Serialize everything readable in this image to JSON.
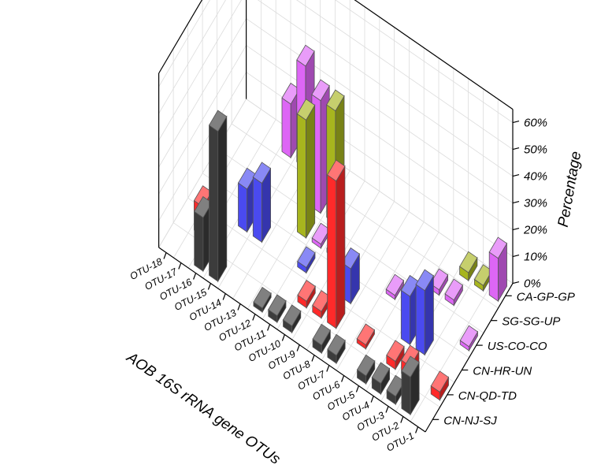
{
  "chart_data": {
    "type": "bar3d",
    "title": "",
    "xlabel": "AOB 16S rRNA gene OTUs",
    "ylabel": "",
    "zlabel": "Percentage",
    "zlim": [
      0,
      65
    ],
    "z_ticks": [
      "0%",
      "10%",
      "20%",
      "30%",
      "40%",
      "50%",
      "60%"
    ],
    "z_tick_values": [
      0,
      10,
      20,
      30,
      40,
      50,
      60
    ],
    "grid": true,
    "categories": [
      "OTU-1",
      "OTU-2",
      "OTU-3",
      "OTU-4",
      "OTU-5",
      "OTU-6",
      "OTU-7",
      "OTU-8",
      "OTU-9",
      "OTU-10",
      "OTU-11",
      "OTU-12",
      "OTU-13",
      "OTU-14",
      "OTU-15",
      "OTU-16",
      "OTU-17",
      "OTU-18"
    ],
    "series": [
      {
        "name": "CN-NJ-SJ",
        "color": "#3c3c3c",
        "values": [
          0,
          14,
          3,
          4,
          3,
          0,
          3,
          3,
          0,
          2.5,
          2.5,
          1.5,
          0,
          0,
          56,
          20,
          0,
          0
        ]
      },
      {
        "name": "CN-QD-TD",
        "color": "#ff2a2a",
        "values": [
          3,
          0,
          5,
          3,
          0,
          1.5,
          0,
          55,
          2.5,
          2.5,
          0,
          0,
          0,
          0,
          0,
          0,
          11,
          0
        ]
      },
      {
        "name": "CN-HR-UN",
        "color": "#4a4af0",
        "values": [
          0,
          0,
          24,
          18,
          0,
          0,
          0,
          13,
          0,
          0,
          2,
          0,
          0,
          0,
          0,
          0,
          0,
          0
        ]
      },
      {
        "name": "US-CO-CO",
        "color": "#dd66f5",
        "values": [
          1.5,
          0,
          0,
          0,
          0,
          1.5,
          0,
          0,
          0,
          1.5,
          1.5,
          0,
          0,
          0,
          0,
          0,
          0,
          0
        ]
      },
      {
        "name": "SG-SG-UP",
        "color": "#dd66f5",
        "values": [
          0,
          0,
          2,
          2,
          0,
          0,
          0,
          0,
          0,
          0,
          0,
          0,
          0,
          0,
          0,
          0,
          0,
          0
        ]
      },
      {
        "name": "CA-GP-GP",
        "color": "#a7b51e",
        "values": [
          0,
          2,
          3,
          0,
          0,
          0,
          0,
          0,
          0,
          0,
          0,
          0,
          0,
          0,
          0,
          0,
          0,
          0
        ]
      }
    ],
    "extra_bars": [
      {
        "category": "OTU-1",
        "series": "CA-GP-GP",
        "value": 16,
        "color": "#dd66f5"
      },
      {
        "category": "OTU-14",
        "series": "CA-GP-GP",
        "value": 38,
        "color": "#dd66f5"
      },
      {
        "category": "OTU-15",
        "series": "CA-GP-GP",
        "value": 20,
        "color": "#dd66f5"
      },
      {
        "category": "OTU-14",
        "series": "CN-HR-UN",
        "value": 22,
        "color": "#4a4af0"
      },
      {
        "category": "OTU-15",
        "series": "CN-HR-UN",
        "value": 16,
        "color": "#4a4af0"
      },
      {
        "category": "OTU-12",
        "series": "SG-SG-UP",
        "value": 42,
        "color": "#dd66f5"
      },
      {
        "category": "OTU-11",
        "series": "SG-SG-UP",
        "value": 42,
        "color": "#a7b51e"
      },
      {
        "category": "OTU-12",
        "series": "US-CO-CO",
        "value": 44,
        "color": "#a7b51e"
      }
    ]
  }
}
